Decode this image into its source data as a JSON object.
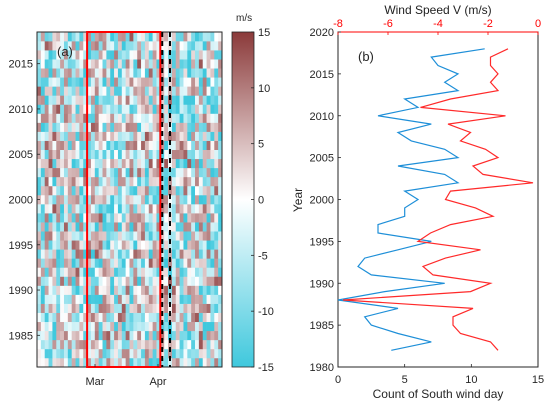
{
  "chart_data": [
    {
      "type": "heatmap",
      "panel_label": "(a)",
      "x_tick_labels": [
        "Mar",
        "Apr"
      ],
      "y_ticks": [
        1985,
        1990,
        1995,
        2000,
        2005,
        2010,
        2015
      ],
      "ylim": [
        1981.5,
        2018.5
      ],
      "years": [
        1982,
        2018
      ],
      "columns": 48,
      "colorbar": {
        "unit": "m/s",
        "ticks": [
          15,
          10,
          5,
          0,
          -5,
          -10,
          -15
        ],
        "range": [
          -15,
          15
        ],
        "colors": {
          "negative": "#3fc8dd",
          "zero": "#ffffff",
          "positive": "#8b3a3a"
        }
      },
      "red_box_columns": [
        13,
        32
      ],
      "dashed_columns": [
        32.5,
        34.5
      ],
      "box_color": "#ff0000",
      "dashed_color": "#000000"
    },
    {
      "type": "line",
      "panel_label": "(b)",
      "ylabel": "Year",
      "xlabel": "Count of South wind day",
      "x2label": "Wind Speed V (m/s)",
      "xlim": [
        0,
        15
      ],
      "x2lim": [
        -8,
        0
      ],
      "ylim": [
        1980,
        2020
      ],
      "x_ticks": [
        0,
        5,
        10,
        15
      ],
      "x2_ticks": [
        -8,
        -6,
        -4,
        -2,
        0
      ],
      "y_ticks": [
        1980,
        1985,
        1990,
        1995,
        2000,
        2005,
        2010,
        2015,
        2020
      ],
      "years": [
        1982,
        1983,
        1984,
        1985,
        1986,
        1987,
        1988,
        1989,
        1990,
        1991,
        1992,
        1993,
        1994,
        1995,
        1996,
        1997,
        1998,
        1999,
        2000,
        2001,
        2002,
        2003,
        2004,
        2005,
        2006,
        2007,
        2008,
        2009,
        2010,
        2011,
        2012,
        2013,
        2014,
        2015,
        2016,
        2017,
        2018
      ],
      "series": [
        {
          "axis": "bottom",
          "color": "#1e8fd8",
          "values": [
            4,
            7,
            4.5,
            2.5,
            2,
            4.5,
            0,
            3.5,
            8,
            2.5,
            1.5,
            2,
            4.5,
            7,
            3,
            3,
            5,
            5,
            6,
            5,
            9,
            8,
            4.5,
            9,
            8,
            5.5,
            4.5,
            7,
            3,
            6,
            5,
            9,
            8,
            9,
            7.5,
            7,
            11
          ]
        },
        {
          "axis": "top",
          "color": "#ff2a2a",
          "values": [
            -1.6,
            -1.9,
            -3.1,
            -3.4,
            -3.4,
            -2.6,
            -7.8,
            -2.7,
            -1.9,
            -4.2,
            -4.6,
            -3.7,
            -2.3,
            -4.8,
            -4.3,
            -3.5,
            -1.8,
            -2.5,
            -3.7,
            -3.5,
            -0.2,
            -2.2,
            -2.6,
            -1.6,
            -2.1,
            -3.1,
            -2.7,
            -3.6,
            -1.3,
            -4.7,
            -3.5,
            -1.6,
            -1.9,
            -1.6,
            -1.9,
            -1.9,
            -1.2
          ]
        }
      ]
    }
  ]
}
